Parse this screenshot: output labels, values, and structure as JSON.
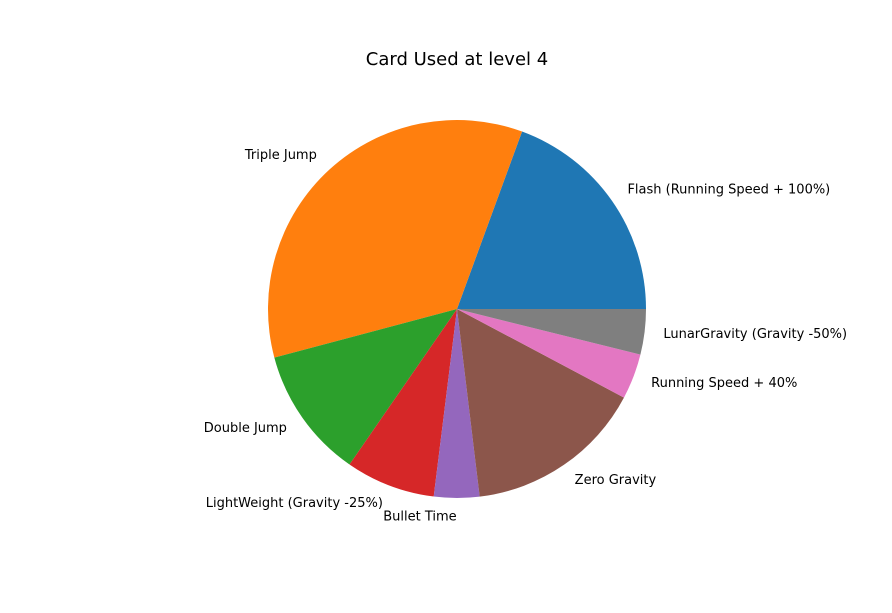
{
  "chart_data": {
    "type": "pie",
    "title": "Card Used at level 4",
    "start_angle_deg": 0,
    "direction": "counterclockwise",
    "legend": "none",
    "slices": [
      {
        "label": "Flash (Running Speed + 100%)",
        "value": 19,
        "color": "#1f77b4"
      },
      {
        "label": "Triple Jump",
        "value": 34,
        "color": "#ff7f0e"
      },
      {
        "label": "Double Jump",
        "value": 11,
        "color": "#2ca02c"
      },
      {
        "label": "LightWeight (Gravity -25%)",
        "value": 7.5,
        "color": "#d62728"
      },
      {
        "label": "Bullet Time",
        "value": 3.8,
        "color": "#9467bd"
      },
      {
        "label": "Zero Gravity",
        "value": 15,
        "color": "#8c564b"
      },
      {
        "label": "Running Speed + 40%",
        "value": 3.8,
        "color": "#e377c2"
      },
      {
        "label": "LunarGravity (Gravity -50%)",
        "value": 3.8,
        "color": "#7f7f7f"
      }
    ]
  }
}
